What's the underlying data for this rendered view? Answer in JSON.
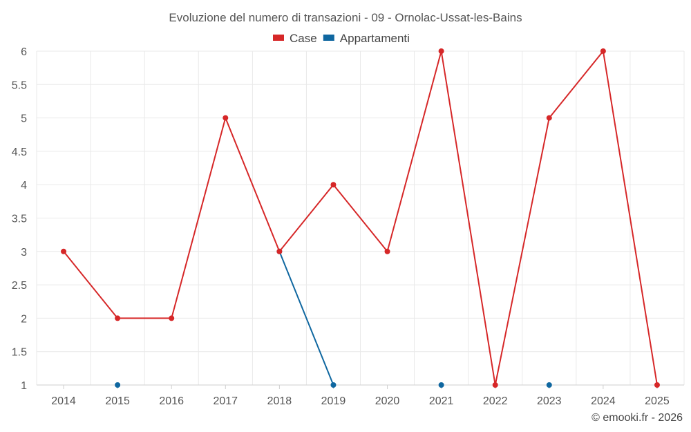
{
  "chart_data": {
    "type": "line",
    "title": "Evoluzione del numero di transazioni - 09 - Ornolac-Ussat-les-Bains",
    "xlabel": "",
    "ylabel": "",
    "categories": [
      "2014",
      "2015",
      "2016",
      "2017",
      "2018",
      "2019",
      "2020",
      "2021",
      "2022",
      "2023",
      "2024",
      "2025"
    ],
    "ylim": [
      1,
      6
    ],
    "yticks": [
      1,
      1.5,
      2,
      2.5,
      3,
      3.5,
      4,
      4.5,
      5,
      5.5,
      6
    ],
    "ytick_labels": [
      "1",
      "1.5",
      "2",
      "2.5",
      "3",
      "3.5",
      "4",
      "4.5",
      "5",
      "5.5",
      "6"
    ],
    "grid": true,
    "legend_position": "top-center",
    "series": [
      {
        "name": "Case",
        "color": "#d62728",
        "values": [
          3,
          2,
          2,
          5,
          3,
          4,
          3,
          6,
          1,
          5,
          6,
          1
        ]
      },
      {
        "name": "Appartamenti",
        "color": "#0f67a0",
        "values": [
          null,
          1,
          null,
          null,
          3,
          1,
          null,
          1,
          null,
          1,
          null,
          null
        ]
      }
    ]
  },
  "credit": "© emooki.fr - 2026"
}
